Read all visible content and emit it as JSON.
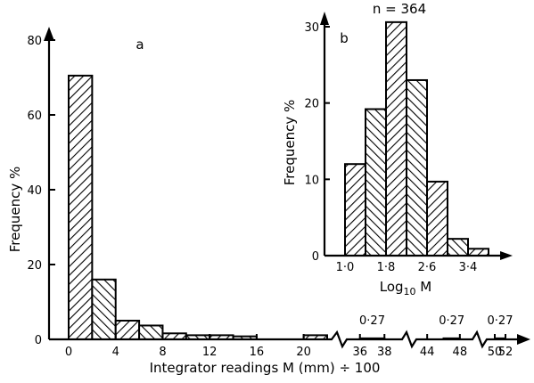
{
  "chart_data": [
    {
      "type": "bar",
      "panel_label": "a",
      "xlabel": "Integrator readings  M (mm) ÷ 100",
      "ylabel": "Frequency  %",
      "ylim": [
        0,
        80
      ],
      "yticks": [
        "0",
        "20",
        "40",
        "60",
        "80"
      ],
      "xticks": [
        {
          "label": "0",
          "x": 0
        },
        {
          "label": "4",
          "x": 4
        },
        {
          "label": "8",
          "x": 8
        },
        {
          "label": "12",
          "x": 12
        },
        {
          "label": "16",
          "x": 16
        },
        {
          "label": "20",
          "x": 20
        },
        {
          "label": "36",
          "x": 36
        },
        {
          "label": "38",
          "x": 38
        },
        {
          "label": "44",
          "x": 44
        },
        {
          "label": "48",
          "x": 48
        },
        {
          "label": "50",
          "x": 50
        },
        {
          "label": "52",
          "x": 52
        }
      ],
      "bins": [
        {
          "from": 0,
          "to": 2,
          "value": 70.5
        },
        {
          "from": 2,
          "to": 4,
          "value": 16
        },
        {
          "from": 4,
          "to": 6,
          "value": 5
        },
        {
          "from": 6,
          "to": 8,
          "value": 3.7
        },
        {
          "from": 8,
          "to": 10,
          "value": 1.6
        },
        {
          "from": 10,
          "to": 12,
          "value": 1.1
        },
        {
          "from": 12,
          "to": 14,
          "value": 1.1
        },
        {
          "from": 14,
          "to": 16,
          "value": 0.8
        },
        {
          "from": 20,
          "to": 22,
          "value": 1.1
        },
        {
          "from": 36,
          "to": 38,
          "value": 0.27
        },
        {
          "from": 46,
          "to": 48,
          "value": 0.27
        },
        {
          "from": 50,
          "to": 52,
          "value": 0.27
        }
      ],
      "annotations": [
        {
          "text": "0·27",
          "bin_from": 36
        },
        {
          "text": "0·27",
          "bin_from": 46
        },
        {
          "text": "0·27",
          "bin_from": 50
        }
      ]
    },
    {
      "type": "bar",
      "panel_label": "b",
      "title": "n = 364",
      "xlabel": "Log10 M",
      "xlabel_main": "Log",
      "xlabel_sub": "10",
      "xlabel_tail": " M",
      "ylabel": "Frequency  %",
      "ylim": [
        0,
        30
      ],
      "yticks": [
        "0",
        "10",
        "20",
        "30"
      ],
      "xticks": [
        {
          "label": "1·0",
          "x": 1.0
        },
        {
          "label": "1·8",
          "x": 1.8
        },
        {
          "label": "2·6",
          "x": 2.6
        },
        {
          "label": "3·4",
          "x": 3.4
        }
      ],
      "bins": [
        {
          "from": 1.0,
          "to": 1.4,
          "value": 12
        },
        {
          "from": 1.4,
          "to": 1.8,
          "value": 19.2
        },
        {
          "from": 1.8,
          "to": 2.2,
          "value": 30.6
        },
        {
          "from": 2.2,
          "to": 2.6,
          "value": 23
        },
        {
          "from": 2.6,
          "to": 3.0,
          "value": 9.7
        },
        {
          "from": 3.0,
          "to": 3.4,
          "value": 2.2
        },
        {
          "from": 3.4,
          "to": 3.8,
          "value": 0.9
        }
      ]
    }
  ]
}
